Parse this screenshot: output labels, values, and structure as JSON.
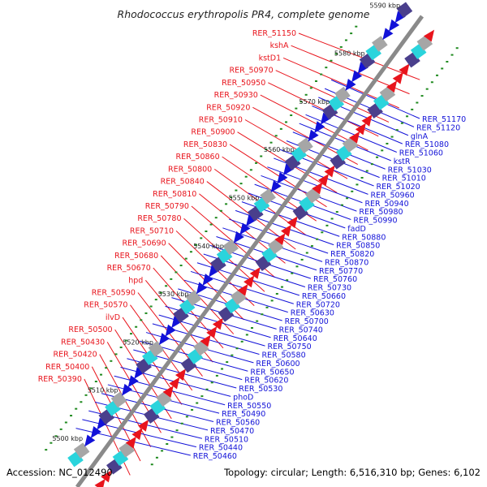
{
  "title": "Rhodococcus erythropolis PR4, complete genome",
  "footer": {
    "accession": "Accession: NC_012490",
    "summary": "Topology: circular; Length: 6,516,310 bp; Genes: 6,102"
  },
  "colors": {
    "axis": "#8a8a8a",
    "forward": "#e8141c",
    "reverse": "#1212d8",
    "tick_dot": "#1f8a1f",
    "feature_purple": "#4a3f8c",
    "feature_cyan": "#2ad4dc",
    "feature_gray": "#a6a6a6"
  },
  "ticks": [
    {
      "label": "5500 kbp"
    },
    {
      "label": "5510 kbp"
    },
    {
      "label": "5520 kbp"
    },
    {
      "label": "5530 kbp"
    },
    {
      "label": "5540 kbp"
    },
    {
      "label": "5550 kbp"
    },
    {
      "label": "5560 kbp"
    },
    {
      "label": "5570 kbp"
    },
    {
      "label": "5580 kbp"
    },
    {
      "label": "5590 kbp"
    }
  ],
  "forward_labels": [
    {
      "text": "RER_51150"
    },
    {
      "text": "kshA"
    },
    {
      "text": "kstD1"
    },
    {
      "text": "RER_50970"
    },
    {
      "text": "RER_50950"
    },
    {
      "text": "RER_50930"
    },
    {
      "text": "RER_50920"
    },
    {
      "text": "RER_50910"
    },
    {
      "text": "RER_50900"
    },
    {
      "text": "RER_50830"
    },
    {
      "text": "RER_50860"
    },
    {
      "text": "RER_50800"
    },
    {
      "text": "RER_50840"
    },
    {
      "text": "RER_50810"
    },
    {
      "text": "RER_50790"
    },
    {
      "text": "RER_50780"
    },
    {
      "text": "RER_50710"
    },
    {
      "text": "RER_50690"
    },
    {
      "text": "RER_50680"
    },
    {
      "text": "RER_50670"
    },
    {
      "text": "hpd"
    },
    {
      "text": "RER_50590"
    },
    {
      "text": "RER_50570"
    },
    {
      "text": "ilvD"
    },
    {
      "text": "RER_50500"
    },
    {
      "text": "RER_50430"
    },
    {
      "text": "RER_50420"
    },
    {
      "text": "RER_50400"
    },
    {
      "text": "RER_50390"
    }
  ],
  "reverse_labels": [
    {
      "text": "RER_51170"
    },
    {
      "text": "RER_51120"
    },
    {
      "text": "glnA"
    },
    {
      "text": "RER_51080"
    },
    {
      "text": "RER_51060"
    },
    {
      "text": "kstR"
    },
    {
      "text": "RER_51030"
    },
    {
      "text": "RER_51010"
    },
    {
      "text": "RER_51020"
    },
    {
      "text": "RER_50960"
    },
    {
      "text": "RER_50940"
    },
    {
      "text": "RER_50980"
    },
    {
      "text": "RER_50990"
    },
    {
      "text": "fadD"
    },
    {
      "text": "RER_50880"
    },
    {
      "text": "RER_50850"
    },
    {
      "text": "RER_50820"
    },
    {
      "text": "RER_50870"
    },
    {
      "text": "RER_50770"
    },
    {
      "text": "RER_50760"
    },
    {
      "text": "RER_50730"
    },
    {
      "text": "RER_50660"
    },
    {
      "text": "RER_50720"
    },
    {
      "text": "RER_50630"
    },
    {
      "text": "RER_50700"
    },
    {
      "text": "RER_50740"
    },
    {
      "text": "RER_50640"
    },
    {
      "text": "RER_50750"
    },
    {
      "text": "RER_50580"
    },
    {
      "text": "RER_50600"
    },
    {
      "text": "RER_50650"
    },
    {
      "text": "RER_50620"
    },
    {
      "text": "RER_50530"
    },
    {
      "text": "phoD"
    },
    {
      "text": "RER_50550"
    },
    {
      "text": "RER_50490"
    },
    {
      "text": "RER_50560"
    },
    {
      "text": "RER_50470"
    },
    {
      "text": "RER_50510"
    },
    {
      "text": "RER_50440"
    },
    {
      "text": "RER_50460"
    }
  ]
}
